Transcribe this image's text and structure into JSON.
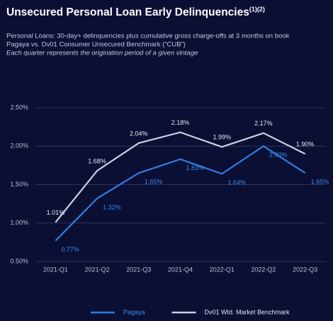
{
  "chart_data": {
    "type": "line",
    "title": "Unsecured Personal Loan Early Delinquencies",
    "title_note": "(1)(2)",
    "subtitle": [
      "Personal Loans: 30-day+ delinquencies plus cumulative gross charge-offs at 3 months on book",
      "Pagaya vs. Dv01 Consumer Unsecured Benchmark (“CUB”)",
      "Each quarter represents the origination period of a given vintage"
    ],
    "categories": [
      "2021-Q1",
      "2021-Q2",
      "2021-Q3",
      "2021-Q4",
      "2022-Q1",
      "2022-Q2",
      "2022-Q3"
    ],
    "series": [
      {
        "name": "Pagaya",
        "color": "#2f7de1",
        "values": [
          0.77,
          1.32,
          1.65,
          1.83,
          1.64,
          2.0,
          1.65
        ],
        "value_labels": [
          "0.77%",
          "1.32%",
          "1.65%",
          "1.83%",
          "1.64%",
          "2.00%",
          "1.65%"
        ]
      },
      {
        "name": "Dv01 Wtd. Market Benchmark",
        "color": "#c9d0df",
        "values": [
          1.01,
          1.68,
          2.04,
          2.18,
          1.99,
          2.17,
          1.9
        ],
        "value_labels": [
          "1.01%",
          "1.68%",
          "2.04%",
          "2.18%",
          "1.99%",
          "2.17%",
          "1.90%"
        ]
      }
    ],
    "ylim": [
      0.5,
      2.5
    ],
    "yticks": [
      {
        "value": 0.5,
        "label": "0.50%"
      },
      {
        "value": 1.0,
        "label": "1.00%"
      },
      {
        "value": 1.5,
        "label": "1.50%"
      },
      {
        "value": 2.0,
        "label": "2.00%"
      },
      {
        "value": 2.5,
        "label": "2.50%"
      }
    ],
    "grid": true
  }
}
